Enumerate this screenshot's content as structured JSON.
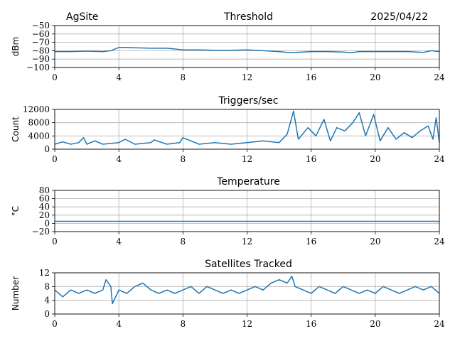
{
  "header": {
    "site": "AgSite",
    "date": "2025/04/22"
  },
  "style": {
    "line_color": "#1f77b4",
    "grid_color": "#b0b0b0",
    "axis_color": "#000000"
  },
  "chart_data": [
    {
      "type": "line",
      "title": "Threshold",
      "ylabel": "dBm",
      "xlabel": "",
      "xlim": [
        0,
        24
      ],
      "ylim": [
        -100,
        -50
      ],
      "xticks": [
        "0",
        "4",
        "8",
        "12",
        "16",
        "20",
        "24"
      ],
      "yticks": [
        "−50",
        "−60",
        "−70",
        "−80",
        "−90",
        "−100"
      ],
      "grid": true,
      "series": [
        {
          "x": [
            0,
            1,
            2,
            3,
            3.5,
            4,
            4.5,
            5,
            6,
            7,
            7.5,
            8,
            9,
            10,
            11,
            12,
            13,
            14,
            14.5,
            15,
            15.5,
            16,
            17,
            18,
            18.5,
            19,
            20,
            21,
            22,
            23,
            23.5,
            24
          ],
          "values": [
            -81,
            -81,
            -80.5,
            -81,
            -80,
            -76,
            -76,
            -76.5,
            -77,
            -77,
            -78,
            -79,
            -79,
            -79.5,
            -79.5,
            -79,
            -80,
            -81,
            -82,
            -82,
            -81.5,
            -81,
            -81,
            -81.5,
            -82.5,
            -81,
            -81,
            -81,
            -81,
            -82,
            -80,
            -81
          ]
        }
      ]
    },
    {
      "type": "line",
      "title": "Triggers/sec",
      "ylabel": "Count",
      "xlabel": "",
      "xlim": [
        0,
        24
      ],
      "ylim": [
        0,
        12000
      ],
      "xticks": [
        "0",
        "4",
        "8",
        "12",
        "16",
        "20",
        "24"
      ],
      "yticks": [
        "0",
        "4000",
        "8000",
        "12000"
      ],
      "grid": true,
      "series": [
        {
          "x": [
            0,
            0.5,
            1,
            1.5,
            1.8,
            2,
            2.5,
            3,
            4,
            4.4,
            5,
            6,
            6.2,
            7,
            7.8,
            8,
            9,
            10,
            11,
            12,
            13,
            14,
            14.5,
            14.9,
            15.2,
            15.8,
            16.3,
            16.8,
            17.2,
            17.6,
            18.1,
            18.6,
            19,
            19.4,
            19.9,
            20.3,
            20.8,
            21.3,
            21.8,
            22.3,
            22.8,
            23.3,
            23.6,
            23.8,
            24
          ],
          "values": [
            1500,
            2200,
            1500,
            2000,
            3500,
            1500,
            2500,
            1500,
            2000,
            3000,
            1500,
            2000,
            2800,
            1500,
            2000,
            3500,
            1500,
            2000,
            1500,
            2000,
            2500,
            2000,
            4500,
            11500,
            3000,
            6500,
            4000,
            9000,
            2500,
            6500,
            5500,
            8000,
            11000,
            4000,
            10500,
            2500,
            6500,
            3000,
            5000,
            3500,
            5500,
            7000,
            3000,
            9500,
            2000
          ]
        }
      ]
    },
    {
      "type": "line",
      "title": "Temperature",
      "ylabel": "°C",
      "xlabel": "",
      "xlim": [
        0,
        24
      ],
      "ylim": [
        -20,
        80
      ],
      "xticks": [
        "0",
        "4",
        "8",
        "12",
        "16",
        "20",
        "24"
      ],
      "yticks": [
        "−20",
        "0",
        "20",
        "40",
        "60",
        "80"
      ],
      "grid": true,
      "series": [
        {
          "x": [
            0,
            24
          ],
          "values": [
            5,
            5
          ]
        }
      ]
    },
    {
      "type": "line",
      "title": "Satellites Tracked",
      "ylabel": "Number",
      "xlabel": "",
      "xlim": [
        0,
        24
      ],
      "ylim": [
        0,
        12
      ],
      "xticks": [
        "0",
        "4",
        "8",
        "12",
        "16",
        "20",
        "24"
      ],
      "yticks": [
        "0",
        "4",
        "8",
        "12"
      ],
      "grid": true,
      "series": [
        {
          "x": [
            0,
            0.5,
            1,
            1.5,
            2,
            2.5,
            3,
            3.2,
            3.5,
            3.6,
            4,
            4.5,
            5,
            5.5,
            6,
            6.5,
            7,
            7.5,
            8,
            8.5,
            9,
            9.5,
            10,
            10.5,
            11,
            11.5,
            12,
            12.5,
            13,
            13.5,
            14,
            14.5,
            14.8,
            15,
            15.5,
            16,
            16.5,
            17,
            17.5,
            18,
            18.5,
            19,
            19.5,
            20,
            20.5,
            21,
            21.5,
            22,
            22.5,
            23,
            23.5,
            24
          ],
          "values": [
            7,
            5,
            7,
            6,
            7,
            6,
            7,
            10,
            8,
            3,
            7,
            6,
            8,
            9,
            7,
            6,
            7,
            6,
            7,
            8,
            6,
            8,
            7,
            6,
            7,
            6,
            7,
            8,
            7,
            9,
            10,
            9,
            11,
            8,
            7,
            6,
            8,
            7,
            6,
            8,
            7,
            6,
            7,
            6,
            8,
            7,
            6,
            7,
            8,
            7,
            8,
            6
          ]
        }
      ]
    }
  ]
}
